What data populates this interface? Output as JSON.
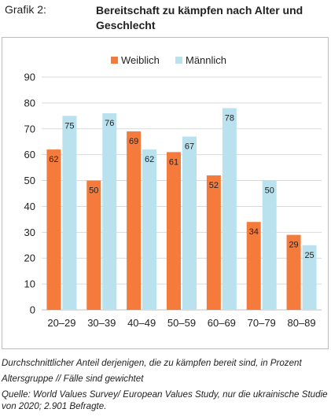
{
  "header": {
    "label": "Grafik 2:",
    "title": "Bereitschaft zu kämpfen nach Alter und Geschlecht"
  },
  "colors": {
    "weiblich": "#f47b3b",
    "maennlich": "#b9e1ee",
    "grid": "#d9d9d9",
    "axis": "#bfbfbf"
  },
  "chart_data": {
    "type": "bar",
    "categories": [
      "20–29",
      "30–39",
      "40–49",
      "50–59",
      "60–69",
      "70–79",
      "80–89"
    ],
    "series": [
      {
        "name": "Weiblich",
        "values": [
          62,
          50,
          69,
          61,
          52,
          34,
          29
        ]
      },
      {
        "name": "Männlich",
        "values": [
          75,
          76,
          62,
          67,
          78,
          50,
          25
        ]
      }
    ],
    "ylim": [
      0,
      90
    ],
    "yticks": [
      0,
      10,
      20,
      30,
      40,
      50,
      60,
      70,
      80,
      90
    ],
    "grid": true,
    "legend_position": "top-center",
    "data_labels": true
  },
  "footnotes": {
    "description": "Durchschnittlicher Anteil derjenigen, die zu kämpfen bereit sind, in Prozent",
    "weighting": "Altersgruppe // Fälle sind gewichtet",
    "source": "Quelle: World Values Survey/ European Values Study, nur die ukrainische Studie von 2020; 2.901 Befragte."
  }
}
